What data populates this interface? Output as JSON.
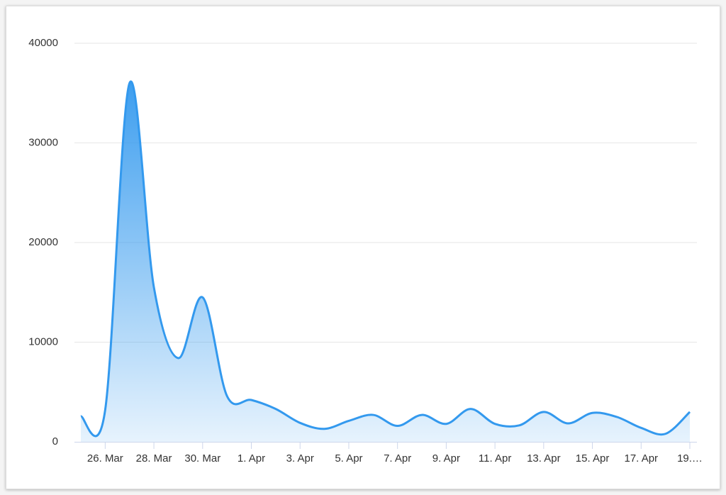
{
  "chart_data": {
    "type": "area",
    "categories": [
      null,
      "26. Mar",
      null,
      "28. Mar",
      null,
      "30. Mar",
      null,
      "1. Apr",
      null,
      "3. Apr",
      null,
      "5. Apr",
      null,
      "7. Apr",
      null,
      "9. Apr",
      null,
      "11. Apr",
      null,
      "13. Apr",
      null,
      "15. Apr",
      null,
      "17. Apr",
      null,
      "19.…"
    ],
    "values": [
      2560,
      3200,
      36000,
      15500,
      8400,
      14500,
      4600,
      4200,
      3300,
      1900,
      1300,
      2100,
      2700,
      1600,
      2700,
      1800,
      3300,
      1800,
      1650,
      3000,
      1850,
      2900,
      2500,
      1400,
      800,
      3000
    ],
    "color": "#3399ee",
    "ylim": [
      0,
      40000
    ],
    "yticks": [
      0,
      10000,
      20000,
      30000,
      40000
    ],
    "grid": true
  }
}
